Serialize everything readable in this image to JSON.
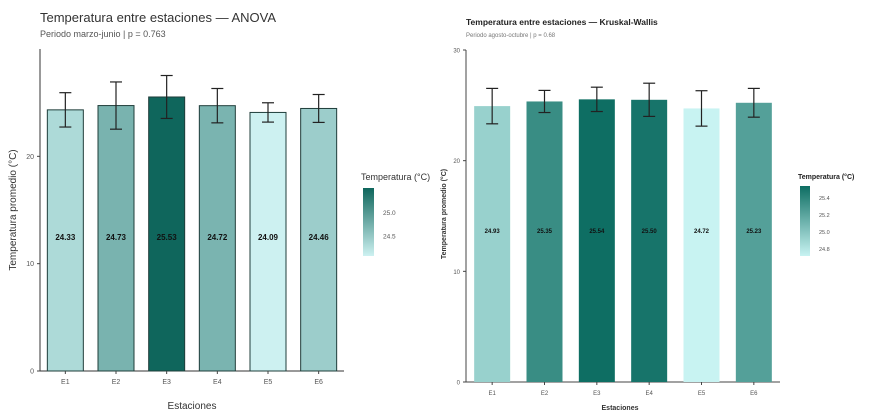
{
  "chart_data": [
    {
      "type": "bar",
      "title": "Temperatura entre estaciones — ANOVA",
      "subtitle": "Periodo marzo-junio | p = 0.763",
      "xlabel": "Estaciones",
      "ylabel": "Temperatura promedio (°C)",
      "categories": [
        "E1",
        "E2",
        "E3",
        "E4",
        "E5",
        "E6"
      ],
      "values": [
        24.33,
        24.73,
        25.53,
        24.72,
        24.09,
        24.46
      ],
      "value_labels": [
        "24.33",
        "24.73",
        "25.53",
        "24.72",
        "24.09",
        "24.46"
      ],
      "errors": [
        1.6,
        2.2,
        2.0,
        1.6,
        0.9,
        1.3
      ],
      "ylim": [
        0,
        30
      ],
      "yticks": [
        0,
        10,
        20
      ],
      "ytick_labels": [
        "0",
        "10",
        "20"
      ],
      "legend": {
        "title": "Temperatura (°C)",
        "position": "right",
        "min": 24.09,
        "max": 25.53,
        "ticks": [
          25.0,
          24.5
        ],
        "tick_labels": [
          "25.0",
          "24.5"
        ]
      },
      "colors": {
        "low": "#cdf1f1",
        "high": "#0f665c",
        "error_bar": "#222222",
        "bar_border": "#1f3d3a"
      },
      "grid": false,
      "bar_outline": true
    },
    {
      "type": "bar",
      "title": "Temperatura entre estaciones — Kruskal-Wallis",
      "subtitle": "Periodo agosto-octubre | p = 0.68",
      "xlabel": "Estaciones",
      "ylabel": "Temperatura promedio (°C)",
      "categories": [
        "E1",
        "E2",
        "E3",
        "E4",
        "E5",
        "E6"
      ],
      "values": [
        24.93,
        25.35,
        25.54,
        25.5,
        24.72,
        25.23
      ],
      "value_labels": [
        "24.93",
        "25.35",
        "25.54",
        "25.50",
        "24.72",
        "25.23"
      ],
      "errors": [
        1.6,
        1.0,
        1.1,
        1.5,
        1.6,
        1.3
      ],
      "ylim": [
        0,
        30
      ],
      "yticks": [
        0,
        10,
        20,
        30
      ],
      "ytick_labels": [
        "0",
        "10",
        "20",
        "30"
      ],
      "legend": {
        "title": "Temperatura (°C)",
        "position": "right",
        "min": 24.72,
        "max": 25.54,
        "ticks": [
          25.4,
          25.2,
          25.0,
          24.8
        ],
        "tick_labels": [
          "25.4",
          "25.2",
          "25.0",
          "24.8"
        ]
      },
      "colors": {
        "low": "#c8f3f2",
        "high": "#0e6e63",
        "error_bar": "#222222",
        "bar_border": "none"
      },
      "grid": false,
      "bar_outline": false
    }
  ]
}
